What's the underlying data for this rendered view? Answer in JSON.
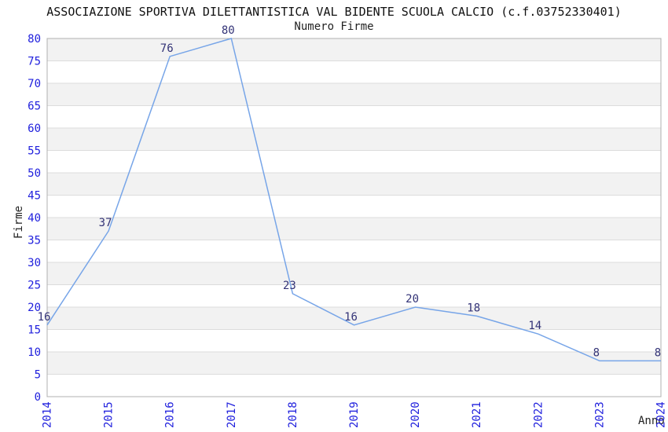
{
  "chart_data": {
    "type": "line",
    "title": "ASSOCIAZIONE SPORTIVA DILETTANTISTICA VAL BIDENTE SCUOLA CALCIO (c.f.03752330401)",
    "subtitle": "Numero Firme",
    "xlabel": "Anno",
    "ylabel": "Firme",
    "categories": [
      "2014",
      "2015",
      "2016",
      "2017",
      "2018",
      "2019",
      "2020",
      "2021",
      "2022",
      "2023",
      "2024"
    ],
    "values": [
      16,
      37,
      76,
      80,
      23,
      16,
      20,
      18,
      14,
      8,
      8
    ],
    "ylim": [
      0,
      80
    ],
    "ytick_step": 5,
    "grid": true,
    "bands_alternating": true,
    "legend_position": "none",
    "colors": {
      "line": "#77a5e8",
      "tick_label": "#2020dd",
      "data_label": "#333377",
      "band": "#f2f2f2",
      "gridline": "#dcdcdc",
      "border": "#b0b0b0",
      "text": "#222222",
      "background": "#ffffff"
    }
  }
}
